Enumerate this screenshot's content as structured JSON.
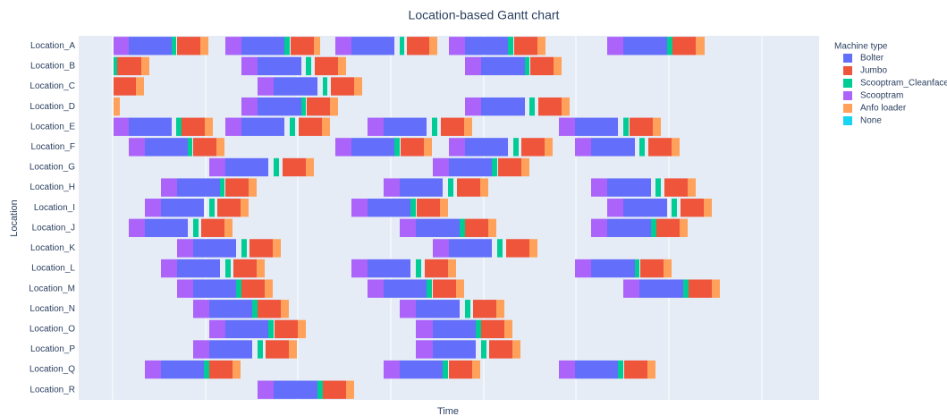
{
  "chart_data": {
    "type": "gantt",
    "title": "Location-based Gantt chart",
    "x_label": "Time",
    "y_label": "Location",
    "legend_title": "Machine type",
    "categories": [
      "Location_A",
      "Location_B",
      "Location_C",
      "Location_D",
      "Location_E",
      "Location_F",
      "Location_G",
      "Location_H",
      "Location_I",
      "Location_J",
      "Location_K",
      "Location_L",
      "Location_M",
      "Location_N",
      "Location_O",
      "Location_P",
      "Location_Q",
      "Location_R"
    ],
    "xlim": [
      -38,
      790
    ],
    "xticks": [
      0,
      104,
      207,
      311,
      415,
      518,
      622,
      726
    ],
    "grid": true,
    "series": [
      {
        "name": "Bolter",
        "color": "#636efa",
        "tasks": [
          [
            0,
            18,
            66
          ],
          [
            0,
            144,
            192
          ],
          [
            0,
            267,
            315
          ],
          [
            0,
            394,
            442
          ],
          [
            0,
            571,
            620
          ],
          [
            1,
            162,
            211
          ],
          [
            1,
            412,
            461
          ],
          [
            2,
            180,
            229
          ],
          [
            3,
            162,
            211
          ],
          [
            3,
            412,
            461
          ],
          [
            4,
            18,
            66
          ],
          [
            4,
            144,
            192
          ],
          [
            4,
            303,
            351
          ],
          [
            4,
            517,
            565
          ],
          [
            5,
            36,
            84
          ],
          [
            5,
            267,
            315
          ],
          [
            5,
            394,
            442
          ],
          [
            5,
            535,
            584
          ],
          [
            6,
            126,
            174
          ],
          [
            6,
            376,
            424
          ],
          [
            7,
            72,
            120
          ],
          [
            7,
            321,
            369
          ],
          [
            7,
            553,
            602
          ],
          [
            8,
            54,
            102
          ],
          [
            8,
            285,
            333
          ],
          [
            8,
            571,
            620
          ],
          [
            9,
            36,
            84
          ],
          [
            9,
            339,
            388
          ],
          [
            9,
            553,
            602
          ],
          [
            10,
            90,
            138
          ],
          [
            10,
            376,
            424
          ],
          [
            11,
            72,
            120
          ],
          [
            11,
            285,
            333
          ],
          [
            11,
            535,
            584
          ],
          [
            12,
            90,
            138
          ],
          [
            12,
            303,
            351
          ],
          [
            12,
            589,
            638
          ],
          [
            13,
            108,
            156
          ],
          [
            13,
            339,
            388
          ],
          [
            14,
            126,
            174
          ],
          [
            14,
            358,
            406
          ],
          [
            15,
            108,
            156
          ],
          [
            15,
            358,
            406
          ],
          [
            16,
            54,
            102
          ],
          [
            16,
            321,
            369
          ],
          [
            16,
            517,
            565
          ],
          [
            17,
            180,
            229
          ]
        ]
      },
      {
        "name": "Jumbo",
        "color": "#ef553b",
        "tasks": [
          [
            0,
            72,
            98
          ],
          [
            0,
            199,
            225
          ],
          [
            0,
            329,
            354
          ],
          [
            0,
            449,
            475
          ],
          [
            0,
            626,
            652
          ],
          [
            1,
            5,
            32
          ],
          [
            1,
            226,
            252
          ],
          [
            1,
            467,
            493
          ],
          [
            2,
            1,
            26
          ],
          [
            2,
            244,
            270
          ],
          [
            3,
            217,
            243
          ],
          [
            3,
            476,
            502
          ],
          [
            4,
            77,
            103
          ],
          [
            4,
            208,
            234
          ],
          [
            4,
            367,
            393
          ],
          [
            4,
            578,
            604
          ],
          [
            5,
            90,
            116
          ],
          [
            5,
            322,
            348
          ],
          [
            5,
            457,
            483
          ],
          [
            5,
            599,
            625
          ],
          [
            6,
            190,
            216
          ],
          [
            6,
            431,
            457
          ],
          [
            7,
            126,
            152
          ],
          [
            7,
            385,
            411
          ],
          [
            7,
            617,
            643
          ],
          [
            8,
            117,
            143
          ],
          [
            8,
            340,
            366
          ],
          [
            8,
            635,
            661
          ],
          [
            9,
            99,
            125
          ],
          [
            9,
            394,
            420
          ],
          [
            9,
            608,
            634
          ],
          [
            10,
            153,
            179
          ],
          [
            10,
            440,
            466
          ],
          [
            11,
            135,
            161
          ],
          [
            11,
            349,
            375
          ],
          [
            11,
            590,
            616
          ],
          [
            12,
            144,
            170
          ],
          [
            12,
            358,
            384
          ],
          [
            12,
            644,
            670
          ],
          [
            13,
            162,
            188
          ],
          [
            13,
            403,
            429
          ],
          [
            14,
            181,
            207
          ],
          [
            14,
            412,
            438
          ],
          [
            15,
            171,
            197
          ],
          [
            15,
            421,
            447
          ],
          [
            16,
            108,
            134
          ],
          [
            16,
            376,
            402
          ],
          [
            16,
            572,
            598
          ],
          [
            17,
            235,
            261
          ]
        ]
      },
      {
        "name": "Scooptram_Cleanface",
        "color": "#00cc96",
        "tasks": [
          [
            0,
            66,
            71
          ],
          [
            0,
            192,
            198
          ],
          [
            0,
            321,
            326
          ],
          [
            0,
            442,
            448
          ],
          [
            0,
            620,
            626
          ],
          [
            1,
            1,
            5
          ],
          [
            1,
            216,
            222
          ],
          [
            1,
            461,
            466
          ],
          [
            2,
            235,
            240
          ],
          [
            3,
            211,
            216
          ],
          [
            3,
            466,
            472
          ],
          [
            4,
            71,
            77
          ],
          [
            4,
            198,
            204
          ],
          [
            4,
            357,
            363
          ],
          [
            4,
            571,
            577
          ],
          [
            5,
            84,
            89
          ],
          [
            5,
            315,
            321
          ],
          [
            5,
            448,
            454
          ],
          [
            5,
            589,
            595
          ],
          [
            6,
            180,
            186
          ],
          [
            6,
            424,
            430
          ],
          [
            7,
            120,
            125
          ],
          [
            7,
            375,
            381
          ],
          [
            7,
            607,
            613
          ],
          [
            8,
            108,
            114
          ],
          [
            8,
            333,
            339
          ],
          [
            8,
            625,
            631
          ],
          [
            9,
            90,
            96
          ],
          [
            9,
            388,
            394
          ],
          [
            9,
            602,
            608
          ],
          [
            10,
            144,
            150
          ],
          [
            10,
            430,
            436
          ],
          [
            11,
            126,
            132
          ],
          [
            11,
            339,
            345
          ],
          [
            11,
            584,
            589
          ],
          [
            12,
            138,
            144
          ],
          [
            12,
            351,
            357
          ],
          [
            12,
            638,
            644
          ],
          [
            13,
            156,
            162
          ],
          [
            13,
            394,
            400
          ],
          [
            14,
            174,
            180
          ],
          [
            14,
            406,
            412
          ],
          [
            15,
            162,
            168
          ],
          [
            15,
            412,
            418
          ],
          [
            16,
            102,
            108
          ],
          [
            16,
            369,
            375
          ],
          [
            16,
            565,
            571
          ],
          [
            17,
            229,
            235
          ]
        ]
      },
      {
        "name": "Scooptram",
        "color": "#ab63fa",
        "tasks": [
          [
            0,
            1,
            18
          ],
          [
            0,
            126,
            144
          ],
          [
            0,
            249,
            267
          ],
          [
            0,
            376,
            394
          ],
          [
            0,
            553,
            571
          ],
          [
            1,
            144,
            162
          ],
          [
            1,
            394,
            412
          ],
          [
            2,
            162,
            180
          ],
          [
            3,
            144,
            162
          ],
          [
            3,
            394,
            412
          ],
          [
            4,
            1,
            18
          ],
          [
            4,
            126,
            144
          ],
          [
            4,
            285,
            303
          ],
          [
            4,
            499,
            517
          ],
          [
            5,
            18,
            36
          ],
          [
            5,
            249,
            267
          ],
          [
            5,
            376,
            394
          ],
          [
            5,
            517,
            535
          ],
          [
            6,
            108,
            126
          ],
          [
            6,
            358,
            376
          ],
          [
            7,
            54,
            72
          ],
          [
            7,
            303,
            321
          ],
          [
            7,
            535,
            553
          ],
          [
            8,
            36,
            54
          ],
          [
            8,
            267,
            285
          ],
          [
            8,
            553,
            571
          ],
          [
            9,
            18,
            36
          ],
          [
            9,
            321,
            339
          ],
          [
            9,
            535,
            553
          ],
          [
            10,
            72,
            90
          ],
          [
            10,
            358,
            376
          ],
          [
            11,
            54,
            72
          ],
          [
            11,
            267,
            285
          ],
          [
            11,
            517,
            535
          ],
          [
            12,
            72,
            90
          ],
          [
            12,
            285,
            303
          ],
          [
            12,
            571,
            589
          ],
          [
            13,
            90,
            108
          ],
          [
            13,
            321,
            339
          ],
          [
            14,
            108,
            126
          ],
          [
            14,
            339,
            358
          ],
          [
            15,
            90,
            108
          ],
          [
            15,
            339,
            358
          ],
          [
            16,
            36,
            54
          ],
          [
            16,
            303,
            321
          ],
          [
            16,
            499,
            517
          ],
          [
            17,
            162,
            180
          ]
        ]
      },
      {
        "name": "Anfo loader",
        "color": "#ffa15a",
        "tasks": [
          [
            0,
            98,
            107
          ],
          [
            0,
            225,
            232
          ],
          [
            0,
            354,
            363
          ],
          [
            0,
            475,
            484
          ],
          [
            0,
            652,
            662
          ],
          [
            1,
            32,
            41
          ],
          [
            1,
            252,
            261
          ],
          [
            1,
            493,
            502
          ],
          [
            2,
            26,
            35
          ],
          [
            2,
            270,
            279
          ],
          [
            3,
            1,
            8
          ],
          [
            3,
            243,
            252
          ],
          [
            3,
            502,
            511
          ],
          [
            4,
            103,
            112
          ],
          [
            4,
            234,
            243
          ],
          [
            4,
            393,
            402
          ],
          [
            4,
            604,
            613
          ],
          [
            5,
            116,
            125
          ],
          [
            5,
            348,
            357
          ],
          [
            5,
            483,
            492
          ],
          [
            5,
            625,
            634
          ],
          [
            6,
            216,
            225
          ],
          [
            6,
            457,
            466
          ],
          [
            7,
            152,
            161
          ],
          [
            7,
            411,
            420
          ],
          [
            7,
            643,
            652
          ],
          [
            8,
            143,
            152
          ],
          [
            8,
            366,
            375
          ],
          [
            8,
            661,
            670
          ],
          [
            9,
            125,
            134
          ],
          [
            9,
            420,
            429
          ],
          [
            9,
            634,
            643
          ],
          [
            10,
            179,
            188
          ],
          [
            10,
            466,
            475
          ],
          [
            11,
            161,
            170
          ],
          [
            11,
            375,
            384
          ],
          [
            11,
            616,
            625
          ],
          [
            12,
            170,
            179
          ],
          [
            12,
            384,
            393
          ],
          [
            12,
            670,
            679
          ],
          [
            13,
            188,
            197
          ],
          [
            13,
            429,
            438
          ],
          [
            14,
            207,
            216
          ],
          [
            14,
            438,
            447
          ],
          [
            15,
            197,
            206
          ],
          [
            15,
            447,
            456
          ],
          [
            16,
            134,
            143
          ],
          [
            16,
            402,
            411
          ],
          [
            16,
            598,
            607
          ],
          [
            17,
            261,
            270
          ]
        ]
      },
      {
        "name": "None",
        "color": "#19d3f3",
        "tasks": []
      }
    ]
  }
}
